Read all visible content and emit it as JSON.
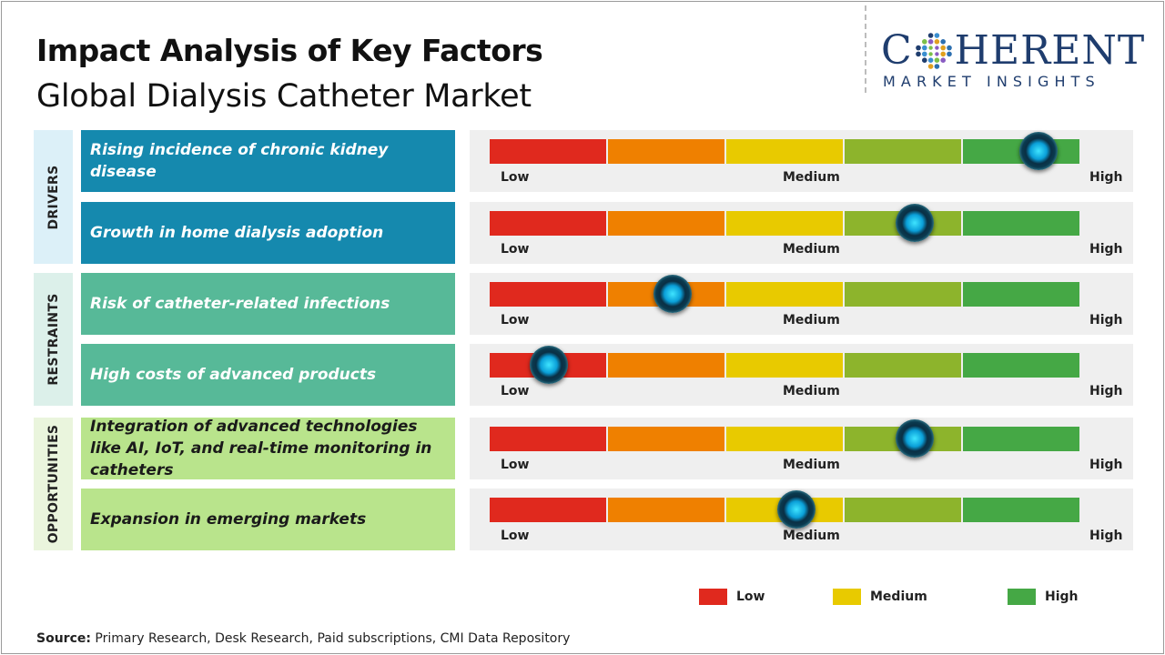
{
  "title": "Impact Analysis of Key Factors",
  "subtitle": "Global Dialysis Catheter Market",
  "logo": {
    "word_pre": "C",
    "word_post": "HERENT",
    "tagline": "MARKET INSIGHTS"
  },
  "colors": {
    "low": "#e0291e",
    "low_medium": "#ef8000",
    "medium": "#e8ca00",
    "medium_high": "#8db42c",
    "high": "#45a845",
    "drivers": "#1589ae",
    "restraints": "#57b998",
    "opportunities": "#b9e48c",
    "drivers_tab": "#dcf0f8",
    "restraints_tab": "#dcf0ea",
    "opportunities_tab": "#eaf5dd"
  },
  "categories": [
    {
      "label": "DRIVERS",
      "key": "drivers"
    },
    {
      "label": "RESTRAINTS",
      "key": "restraints"
    },
    {
      "label": "OPPORTUNITIES",
      "key": "opportunities"
    }
  ],
  "chart_data": {
    "type": "gauge",
    "scale": [
      "Low",
      "Medium",
      "High"
    ],
    "scale_min": 0,
    "scale_max": 1,
    "factors": [
      {
        "category": "DRIVERS",
        "label": "Rising incidence of chronic kidney disease",
        "impact": 0.93
      },
      {
        "category": "DRIVERS",
        "label": "Growth in home dialysis adoption",
        "impact": 0.72
      },
      {
        "category": "RESTRAINTS",
        "label": "Risk of catheter-related infections",
        "impact": 0.31
      },
      {
        "category": "RESTRAINTS",
        "label": "High costs of advanced products",
        "impact": 0.1
      },
      {
        "category": "OPPORTUNITIES",
        "label": "Integration of advanced technologies like AI, IoT, and real-time monitoring in catheters",
        "impact": 0.72
      },
      {
        "category": "OPPORTUNITIES",
        "label": "Expansion in emerging markets",
        "impact": 0.52
      }
    ],
    "legend": [
      {
        "label": "Low",
        "color": "#e0291e"
      },
      {
        "label": "Medium",
        "color": "#e8ca00"
      },
      {
        "label": "High",
        "color": "#45a845"
      }
    ]
  },
  "source": {
    "label": "Source:",
    "text": " Primary Research, Desk Research, Paid subscriptions, CMI Data Repository"
  }
}
